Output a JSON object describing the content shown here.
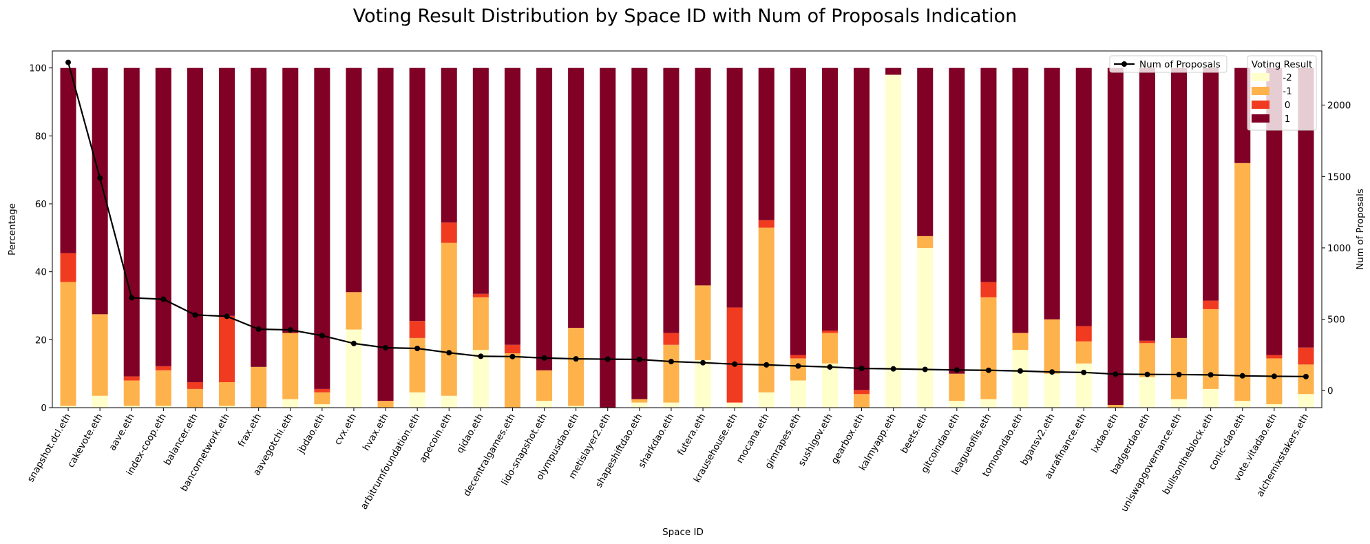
{
  "chart_data": {
    "type": "bar",
    "stacked": true,
    "title": "Voting Result Distribution by Space ID with Num of Proposals Indication",
    "xlabel": "Space ID",
    "ylabel": "Percentage",
    "y2label": "Num of Proposals",
    "ylim": [
      0,
      105
    ],
    "y2lim": [
      -120,
      2380
    ],
    "yticks": [
      0,
      20,
      40,
      60,
      80,
      100
    ],
    "y2ticks": [
      0,
      500,
      1000,
      1500,
      2000
    ],
    "categories": [
      "snapshot.dcl.eth",
      "cakevote.eth",
      "aave.eth",
      "index-coop.eth",
      "balancer.eth",
      "bancornetwork.eth",
      "frax.eth",
      "aavegotchi.eth",
      "jbdao.eth",
      "cvx.eth",
      "hvax.eth",
      "arbitrumfoundation.eth",
      "apecoin.eth",
      "qidao.eth",
      "decentralgames.eth",
      "lido-snapshot.eth",
      "olympusdao.eth",
      "metislayer2.eth",
      "shapeshiftdao.eth",
      "sharkdao.eth",
      "futera.eth",
      "krausehouse.eth",
      "mocana.eth",
      "gimrapes.eth",
      "sushigov.eth",
      "gearbox.eth",
      "kalmyapp.eth",
      "beets.eth",
      "gitcoindao.eth",
      "leagueofils.eth",
      "tomoondao.eth",
      "bgansv2.eth",
      "aurafinance.eth",
      "lxdao.eth",
      "badgerdao.eth",
      "uniswapgovernance.eth",
      "bullsontheblock.eth",
      "conic-dao.eth",
      "vote.vitadao.eth",
      "alchemixstakers.eth"
    ],
    "series": [
      {
        "name": "-2",
        "color": "#ffffcc",
        "values": [
          0.5,
          3.5,
          0.5,
          0.5,
          0,
          0.5,
          0,
          2.5,
          1,
          23,
          0,
          4.5,
          3.5,
          17,
          0,
          2,
          0.5,
          0,
          1.5,
          1.5,
          14,
          1.5,
          4.5,
          8,
          13,
          0,
          98,
          47,
          2,
          2.5,
          17,
          10,
          13,
          0,
          9,
          2.5,
          5.5,
          2,
          1,
          4
        ]
      },
      {
        "name": "-1",
        "color": "#feb24c",
        "values": [
          36.5,
          24,
          7.5,
          10.5,
          5.5,
          7,
          12,
          19.5,
          3.5,
          11,
          2,
          16,
          45,
          15.5,
          16,
          9,
          23,
          0,
          1,
          17,
          22,
          0,
          48.5,
          6.5,
          9,
          4,
          0,
          3.5,
          8,
          30,
          5,
          16,
          6.5,
          0.8,
          10,
          18,
          23.5,
          70,
          13.5,
          8.7
        ]
      },
      {
        "name": "0",
        "color": "#f03b20",
        "values": [
          8.5,
          0,
          1.2,
          1.2,
          2,
          19.5,
          0,
          0,
          1,
          0,
          0,
          5,
          6,
          1,
          2.5,
          0,
          0,
          0,
          0,
          3.5,
          0,
          28,
          2.2,
          1,
          0.7,
          1.2,
          0,
          0,
          0,
          4.5,
          0,
          0,
          4.5,
          0,
          0.7,
          0,
          2.5,
          0,
          1,
          5
        ]
      },
      {
        "name": "1",
        "color": "#800026",
        "values": [
          54.5,
          72.5,
          90.8,
          87.8,
          92.5,
          73,
          88,
          78,
          94.5,
          66,
          98,
          74.5,
          45.5,
          66.5,
          81.5,
          89,
          76.5,
          100,
          97.5,
          78,
          64,
          70.5,
          44.8,
          84.5,
          77.3,
          94.8,
          2,
          49.5,
          90,
          63,
          78,
          74,
          76,
          99.2,
          80.3,
          79.5,
          68.5,
          28,
          84.5,
          82.3
        ]
      }
    ],
    "line": {
      "name": "Num of Proposals",
      "color": "#000000",
      "values": [
        2300,
        1490,
        650,
        640,
        530,
        520,
        430,
        425,
        385,
        330,
        300,
        295,
        265,
        240,
        238,
        228,
        222,
        220,
        218,
        203,
        195,
        185,
        180,
        172,
        165,
        155,
        152,
        148,
        144,
        142,
        137,
        130,
        127,
        115,
        113,
        112,
        110,
        103,
        100,
        98
      ]
    },
    "legend": {
      "placement": "top-right",
      "title": "Voting Result",
      "line_label": "Num of Proposals"
    }
  }
}
